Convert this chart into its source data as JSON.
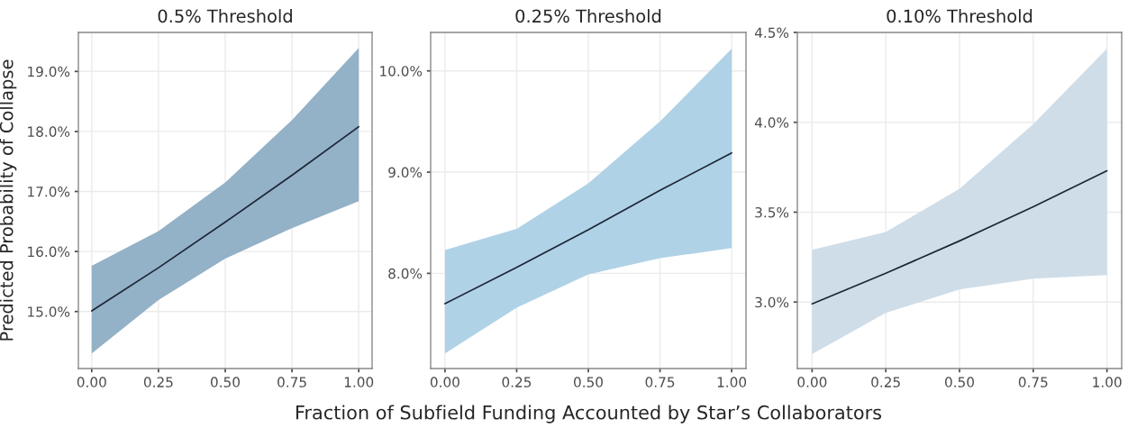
{
  "chart_data": [
    {
      "type": "line",
      "title": "0.5% Threshold",
      "ylabel": "Predicted Probability of Collapse",
      "x": [
        0,
        0.25,
        0.5,
        0.75,
        1
      ],
      "colors": [
        "#93b1c7"
      ],
      "series": [
        {
          "color": "#1b2535",
          "values": [
            15.01,
            15.73,
            16.49,
            17.27,
            18.08
          ],
          "lower": [
            14.3,
            15.19,
            15.88,
            16.39,
            16.84
          ],
          "upper": [
            15.76,
            16.34,
            17.15,
            18.19,
            19.39
          ]
        }
      ],
      "xlim": [
        -0.05,
        1.05
      ],
      "xticks": [
        {
          "value": 0,
          "label": "0.00"
        },
        {
          "value": 0.25,
          "label": "0.25"
        },
        {
          "value": 0.5,
          "label": "0.50"
        },
        {
          "value": 0.75,
          "label": "0.75"
        },
        {
          "value": 1,
          "label": "1.00"
        }
      ],
      "ylim": [
        14.05,
        19.65
      ],
      "yticks": [
        {
          "value": 15,
          "label": "15.0%"
        },
        {
          "value": 16,
          "label": "16.0%"
        },
        {
          "value": 17,
          "label": "17.0%"
        },
        {
          "value": 18,
          "label": "18.0%"
        },
        {
          "value": 19,
          "label": "19.0%"
        }
      ],
      "grid": true
    },
    {
      "type": "line",
      "title": "0.25% Threshold",
      "xlabel": "Fraction of Subfield Funding Accounted by Star’s Collaborators",
      "x": [
        0,
        0.25,
        0.5,
        0.75,
        1
      ],
      "colors": [
        "#afd2e6"
      ],
      "series": [
        {
          "color": "#1b2535",
          "values": [
            7.7,
            8.06,
            8.43,
            8.82,
            9.19
          ],
          "lower": [
            7.21,
            7.66,
            7.99,
            8.15,
            8.25
          ],
          "upper": [
            8.23,
            8.44,
            8.89,
            9.5,
            10.22
          ]
        }
      ],
      "xlim": [
        -0.05,
        1.05
      ],
      "xticks": [
        {
          "value": 0,
          "label": "0.00"
        },
        {
          "value": 0.25,
          "label": "0.25"
        },
        {
          "value": 0.5,
          "label": "0.50"
        },
        {
          "value": 0.75,
          "label": "0.75"
        },
        {
          "value": 1,
          "label": "1.00"
        }
      ],
      "ylim": [
        7.06,
        10.38
      ],
      "yticks": [
        {
          "value": 8,
          "label": "8.0%"
        },
        {
          "value": 9,
          "label": "9.0%"
        },
        {
          "value": 10,
          "label": "10.0%"
        }
      ],
      "grid": true
    },
    {
      "type": "line",
      "title": "0.10% Threshold",
      "x": [
        0,
        0.25,
        0.5,
        0.75,
        1
      ],
      "colors": [
        "#cfdde8"
      ],
      "series": [
        {
          "color": "#1b2535",
          "values": [
            2.99,
            3.16,
            3.34,
            3.53,
            3.73
          ],
          "lower": [
            2.71,
            2.94,
            3.07,
            3.13,
            3.15
          ],
          "upper": [
            3.29,
            3.39,
            3.63,
            3.99,
            4.41
          ]
        }
      ],
      "xlim": [
        -0.05,
        1.05
      ],
      "xticks": [
        {
          "value": 0,
          "label": "0.00"
        },
        {
          "value": 0.25,
          "label": "0.25"
        },
        {
          "value": 0.5,
          "label": "0.50"
        },
        {
          "value": 0.75,
          "label": "0.75"
        },
        {
          "value": 1,
          "label": "1.00"
        }
      ],
      "ylim": [
        2.63,
        4.5
      ],
      "yticks": [
        {
          "value": 3,
          "label": "3.0%"
        },
        {
          "value": 3.5,
          "label": "3.5%"
        },
        {
          "value": 4,
          "label": "4.0%"
        },
        {
          "value": 4.5,
          "label": "4.5%"
        }
      ],
      "grid": true
    }
  ]
}
